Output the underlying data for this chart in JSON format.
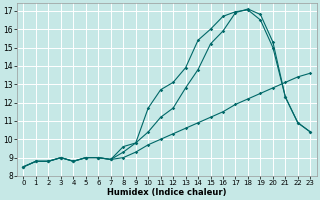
{
  "title": "",
  "xlabel": "Humidex (Indice chaleur)",
  "ylabel": "",
  "bg_color": "#c6e8e6",
  "grid_color": "#ffffff",
  "line_color": "#006868",
  "xlim": [
    -0.5,
    23.5
  ],
  "ylim": [
    8,
    17.4
  ],
  "xticks": [
    0,
    1,
    2,
    3,
    4,
    5,
    6,
    7,
    8,
    9,
    10,
    11,
    12,
    13,
    14,
    15,
    16,
    17,
    18,
    19,
    20,
    21,
    22,
    23
  ],
  "yticks": [
    8,
    9,
    10,
    11,
    12,
    13,
    14,
    15,
    16,
    17
  ],
  "series": [
    {
      "x": [
        0,
        1,
        2,
        3,
        4,
        5,
        6,
        7,
        8,
        9,
        10,
        11,
        12,
        13,
        14,
        15,
        16,
        17,
        18,
        19,
        20,
        21,
        22,
        23
      ],
      "y": [
        8.5,
        8.8,
        8.8,
        9.0,
        8.8,
        9.0,
        9.0,
        8.9,
        9.0,
        9.3,
        9.7,
        10.0,
        10.3,
        10.6,
        10.9,
        11.2,
        11.5,
        11.9,
        12.2,
        12.5,
        12.8,
        13.1,
        13.4,
        13.6
      ]
    },
    {
      "x": [
        0,
        1,
        2,
        3,
        4,
        5,
        6,
        7,
        8,
        9,
        10,
        11,
        12,
        13,
        14,
        15,
        16,
        17,
        18,
        19,
        20,
        21,
        22,
        23
      ],
      "y": [
        8.5,
        8.8,
        8.8,
        9.0,
        8.8,
        9.0,
        9.0,
        8.9,
        9.3,
        9.8,
        10.4,
        11.2,
        11.7,
        12.8,
        13.8,
        15.2,
        15.9,
        16.9,
        17.1,
        16.8,
        15.3,
        12.3,
        10.9,
        10.4
      ]
    },
    {
      "x": [
        0,
        1,
        2,
        3,
        4,
        5,
        6,
        7,
        8,
        9,
        10,
        11,
        12,
        13,
        14,
        15,
        16,
        17,
        18,
        19,
        20,
        21,
        22,
        23
      ],
      "y": [
        8.5,
        8.8,
        8.8,
        9.0,
        8.8,
        9.0,
        9.0,
        8.9,
        9.6,
        9.8,
        11.7,
        12.7,
        13.1,
        13.9,
        15.4,
        16.0,
        16.7,
        16.95,
        17.05,
        16.5,
        15.0,
        12.3,
        10.9,
        10.4
      ]
    }
  ]
}
